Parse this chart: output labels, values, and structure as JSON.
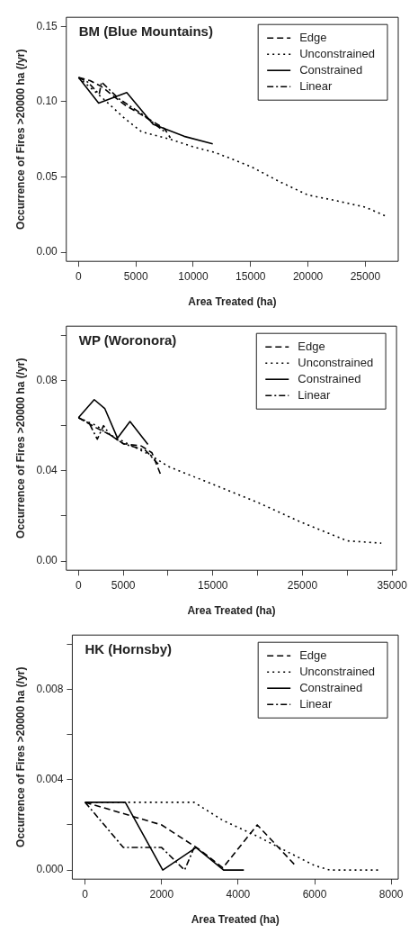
{
  "chart_data": [
    {
      "type": "line",
      "title": "BM (Blue Mountains)",
      "xlabel": "Area Treated (ha)",
      "ylabel": "Occurrence of Fires >20000 ha (/yr)",
      "legend": "top right",
      "grid": false,
      "xlim": [
        -1070,
        27870
      ],
      "ylim": [
        -0.006,
        0.156
      ],
      "xticks": [
        0,
        5000,
        10000,
        15000,
        20000,
        25000
      ],
      "yticks": [
        {
          "value": 0,
          "label": "0.00"
        },
        0.05,
        {
          "value": 0.1,
          "label": "0.10"
        },
        0.15
      ],
      "series": [
        {
          "name": "Edge",
          "color": "#000000",
          "line_style": "dashed",
          "x": [
            0,
            1000,
            2000,
            4000,
            6000,
            7500,
            8000
          ],
          "values": [
            0.116,
            0.114,
            0.11,
            0.098,
            0.089,
            0.082,
            0.076
          ]
        },
        {
          "name": "Unconstrained",
          "color": "#000000",
          "line_style": "dotted",
          "x": [
            0,
            2000,
            4000,
            5500,
            8000,
            10000,
            12000,
            15000,
            17500,
            20000,
            22000,
            25000,
            26800
          ],
          "values": [
            0.116,
            0.103,
            0.089,
            0.08,
            0.075,
            0.07,
            0.066,
            0.057,
            0.047,
            0.038,
            0.035,
            0.03,
            0.024
          ]
        },
        {
          "name": "Constrained",
          "color": "#000000",
          "line_style": "solid",
          "x": [
            0,
            1750,
            4200,
            6500,
            9200,
            11700
          ],
          "values": [
            0.116,
            0.099,
            0.106,
            0.085,
            0.077,
            0.072
          ]
        },
        {
          "name": "Linear",
          "color": "#000000",
          "line_style": "dashdot",
          "x": [
            0,
            800,
            1800,
            2000,
            3500,
            5500,
            7500
          ],
          "values": [
            0.116,
            0.113,
            0.105,
            0.113,
            0.102,
            0.092,
            0.08
          ]
        }
      ]
    },
    {
      "type": "line",
      "title": "WP (Woronora)",
      "xlabel": "Area Treated (ha)",
      "ylabel": "Occurrence of Fires >20000 ha (/yr)",
      "legend": "top right",
      "grid": false,
      "xlim": [
        -1360,
        35500
      ],
      "ylim": [
        -0.004,
        0.104
      ],
      "xticks": [
        0,
        5000,
        {
          "value": 10000,
          "label": null
        },
        15000,
        {
          "value": 20000,
          "label": null
        },
        25000,
        {
          "value": 30000,
          "label": null
        },
        35000
      ],
      "yticks": [
        {
          "value": 0,
          "label": "0.00"
        },
        {
          "value": 0.02,
          "label": null
        },
        0.04,
        {
          "value": 0.06,
          "label": null
        },
        0.08,
        {
          "value": 0.1,
          "label": null
        }
      ],
      "series": [
        {
          "name": "Edge",
          "color": "#000000",
          "line_style": "dashed",
          "x": [
            0,
            2000,
            3500,
            5000,
            7000,
            8200,
            9200
          ],
          "values": [
            0.0635,
            0.059,
            0.056,
            0.052,
            0.051,
            0.048,
            0.038
          ]
        },
        {
          "name": "Unconstrained",
          "color": "#000000",
          "line_style": "dotted",
          "x": [
            0,
            2000,
            3000,
            4500,
            6000,
            8000,
            10000,
            15000,
            20000,
            25000,
            30000,
            33800
          ],
          "values": [
            0.0635,
            0.06,
            0.057,
            0.054,
            0.051,
            0.047,
            0.042,
            0.034,
            0.026,
            0.017,
            0.009,
            0.008
          ]
        },
        {
          "name": "Constrained",
          "color": "#000000",
          "line_style": "solid",
          "x": [
            0,
            1760,
            2930,
            4350,
            5750,
            7750
          ],
          "values": [
            0.0635,
            0.0715,
            0.0676,
            0.0545,
            0.0618,
            0.0517
          ]
        },
        {
          "name": "Linear",
          "color": "#000000",
          "line_style": "dashdot",
          "x": [
            0,
            1200,
            2100,
            2800,
            3500,
            5000,
            7500,
            8900
          ],
          "values": [
            0.0635,
            0.061,
            0.054,
            0.06,
            0.056,
            0.052,
            0.049,
            0.043
          ]
        }
      ]
    },
    {
      "type": "line",
      "title": "HK (Hornsby)",
      "xlabel": "Area Treated (ha)",
      "ylabel": "Occurrence of Fires >20000 ha (/yr)",
      "legend": "top right",
      "grid": false,
      "xlim": [
        -335,
        8185
      ],
      "ylim": [
        -0.0004,
        0.0104
      ],
      "xticks": [
        0,
        2000,
        4000,
        6000,
        8000
      ],
      "yticks": [
        {
          "value": 0,
          "label": "0.000"
        },
        {
          "value": 0.002,
          "label": null
        },
        0.004,
        {
          "value": 0.006,
          "label": null
        },
        0.008,
        {
          "value": 0.01,
          "label": null
        }
      ],
      "series": [
        {
          "name": "Edge",
          "color": "#000000",
          "line_style": "dashed",
          "x": [
            0,
            1200,
            2000,
            3000,
            3600,
            4500,
            5500
          ],
          "values": [
            0.003,
            0.0024,
            0.002,
            0.0009,
            0.0001,
            0.002,
            0.0002
          ]
        },
        {
          "name": "Unconstrained",
          "color": "#000000",
          "line_style": "dotted",
          "x": [
            0,
            2850,
            3600,
            4500,
            5300,
            6000,
            6400,
            7700
          ],
          "values": [
            0.003,
            0.003,
            0.0022,
            0.0015,
            0.0008,
            0.0002,
            0,
            0
          ]
        },
        {
          "name": "Constrained",
          "color": "#000000",
          "line_style": "solid",
          "x": [
            0,
            1050,
            2030,
            2900,
            3620,
            4150
          ],
          "values": [
            0.003,
            0.003,
            0,
            0.001,
            0,
            0
          ]
        },
        {
          "name": "Linear",
          "color": "#000000",
          "line_style": "dashdot",
          "x": [
            0,
            1000,
            2000,
            2600,
            2850
          ],
          "values": [
            0.003,
            0.001,
            0.001,
            0,
            0.001
          ]
        }
      ]
    }
  ]
}
